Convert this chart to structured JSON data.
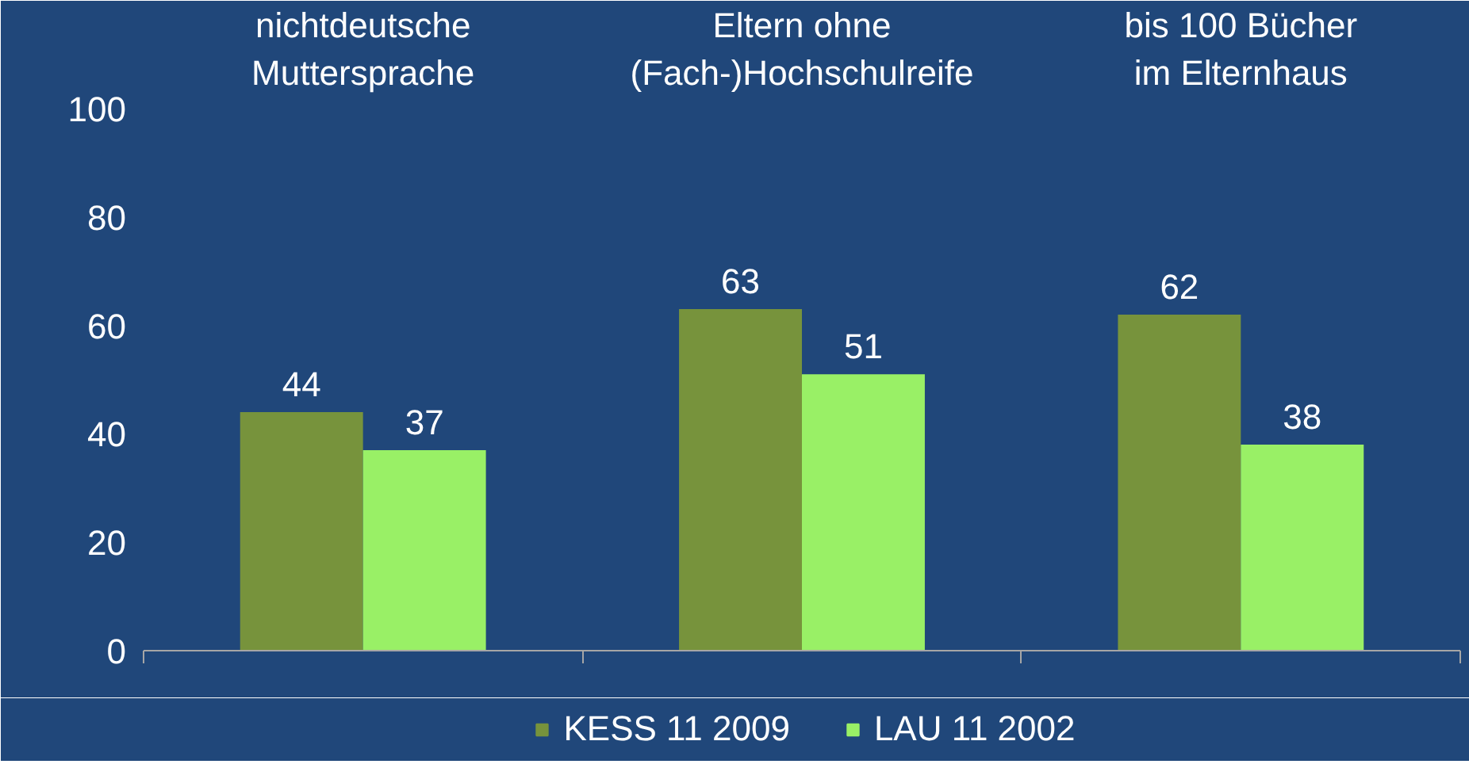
{
  "chart_data": {
    "type": "bar",
    "categories": [
      "nichtdeutsche\nMuttersprache",
      "Eltern ohne\n(Fach-)Hochschulreife",
      "bis 100 Bücher\nim Elternhaus"
    ],
    "series": [
      {
        "name": "KESS 11 2009",
        "color": "#77933c",
        "values": [
          44,
          63,
          62
        ]
      },
      {
        "name": "LAU 11 2002",
        "color": "#99f066",
        "values": [
          37,
          51,
          38
        ]
      }
    ],
    "ylim": [
      0,
      100
    ],
    "yticks": [
      0,
      20,
      40,
      60,
      80,
      100
    ],
    "grid": false,
    "legend": "bottom",
    "data_labels": true
  }
}
